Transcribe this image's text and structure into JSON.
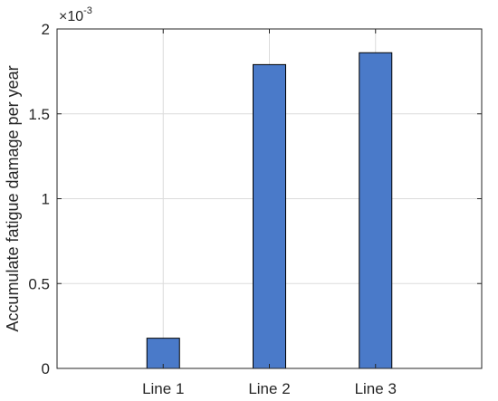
{
  "chart_data": {
    "type": "bar",
    "categories": [
      "Line 1",
      "Line 2",
      "Line 3"
    ],
    "values": [
      0.000178,
      0.00179,
      0.00186
    ],
    "title": "",
    "xlabel": "",
    "ylabel": "Accumulate fatigue damage per year",
    "ylim": [
      0,
      0.002
    ],
    "y_exponent_label": {
      "times": "×10",
      "power": "-3"
    },
    "y_tick_labels": [
      "0",
      "0.5",
      "1",
      "1.5",
      "2"
    ],
    "y_ticks_scaled": [
      0,
      0.5,
      1,
      1.5,
      2
    ],
    "grid": true,
    "legend": "none",
    "colors": {
      "bar_fill": "#4a7ac9",
      "bar_stroke": "#000000",
      "grid": "#dcdcdc",
      "axes": "#262626"
    }
  }
}
